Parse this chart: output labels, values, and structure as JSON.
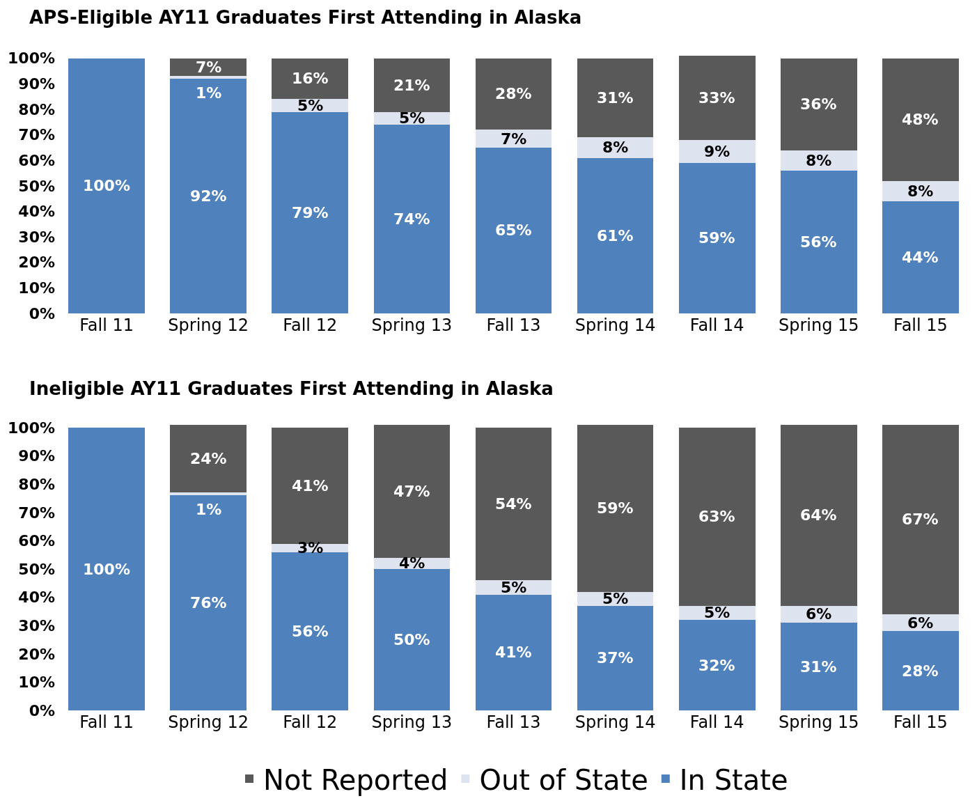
{
  "chart_data": [
    {
      "type": "bar",
      "title": "APS-Eligible AY11 Graduates First Attending in Alaska",
      "categories": [
        "Fall 11",
        "Spring 12",
        "Fall 12",
        "Spring 13",
        "Fall 13",
        "Spring 14",
        "Fall 14",
        "Spring 15",
        "Fall 15"
      ],
      "stacked": true,
      "legend": false,
      "grid": false,
      "ylim": [
        0,
        101
      ],
      "yticks": [
        {
          "value": 0,
          "label": "0%"
        },
        {
          "value": 10,
          "label": "10%"
        },
        {
          "value": 20,
          "label": "20%"
        },
        {
          "value": 30,
          "label": "30%"
        },
        {
          "value": 40,
          "label": "40%"
        },
        {
          "value": 50,
          "label": "50%"
        },
        {
          "value": 60,
          "label": "60%"
        },
        {
          "value": 70,
          "label": "70%"
        },
        {
          "value": 80,
          "label": "80%"
        },
        {
          "value": 90,
          "label": "90%"
        },
        {
          "value": 100,
          "label": "100%"
        }
      ],
      "series": [
        {
          "color": "#4f81bd",
          "values": [
            100,
            92,
            79,
            74,
            65,
            61,
            59,
            56,
            44
          ],
          "value_labels": [
            "100%",
            "92%",
            "79%",
            "74%",
            "65%",
            "61%",
            "59%",
            "56%",
            "44%"
          ]
        },
        {
          "color": "#dde4ef",
          "values": [
            0,
            1,
            5,
            5,
            7,
            8,
            9,
            8,
            8
          ],
          "value_labels": [
            null,
            "1%",
            "5%",
            "5%",
            "7%",
            "8%",
            "9%",
            "8%",
            "8%"
          ]
        },
        {
          "color": "#595959",
          "values": [
            0,
            7,
            16,
            21,
            28,
            31,
            33,
            36,
            48
          ],
          "value_labels": [
            null,
            "7%",
            "16%",
            "21%",
            "28%",
            "31%",
            "33%",
            "36%",
            "48%"
          ]
        }
      ]
    },
    {
      "type": "bar",
      "title": "Ineligible AY11 Graduates First Attending in Alaska",
      "categories": [
        "Fall 11",
        "Spring 12",
        "Fall 12",
        "Spring 13",
        "Fall 13",
        "Spring 14",
        "Fall 14",
        "Spring 15",
        "Fall 15"
      ],
      "stacked": true,
      "legend": "bottom",
      "grid": false,
      "ylim": [
        0,
        101
      ],
      "yticks": [
        {
          "value": 0,
          "label": "0%"
        },
        {
          "value": 10,
          "label": "10%"
        },
        {
          "value": 20,
          "label": "20%"
        },
        {
          "value": 30,
          "label": "30%"
        },
        {
          "value": 40,
          "label": "40%"
        },
        {
          "value": 50,
          "label": "50%"
        },
        {
          "value": 60,
          "label": "60%"
        },
        {
          "value": 70,
          "label": "70%"
        },
        {
          "value": 80,
          "label": "80%"
        },
        {
          "value": 90,
          "label": "90%"
        },
        {
          "value": 100,
          "label": "100%"
        }
      ],
      "series": [
        {
          "name": "In State",
          "color": "#4f81bd",
          "values": [
            100,
            76,
            56,
            50,
            41,
            37,
            32,
            31,
            28
          ],
          "value_labels": [
            "100%",
            "76%",
            "56%",
            "50%",
            "41%",
            "37%",
            "32%",
            "31%",
            "28%"
          ]
        },
        {
          "name": "Out of State",
          "color": "#dde4ef",
          "values": [
            0,
            1,
            3,
            4,
            5,
            5,
            5,
            6,
            6
          ],
          "value_labels": [
            null,
            "1%",
            "3%",
            "4%",
            "5%",
            "5%",
            "5%",
            "6%",
            "6%"
          ]
        },
        {
          "name": "Not Reported",
          "color": "#595959",
          "values": [
            0,
            24,
            41,
            47,
            54,
            59,
            63,
            64,
            67
          ],
          "value_labels": [
            null,
            "24%",
            "41%",
            "47%",
            "54%",
            "59%",
            "63%",
            "64%",
            "67%"
          ]
        }
      ]
    }
  ]
}
